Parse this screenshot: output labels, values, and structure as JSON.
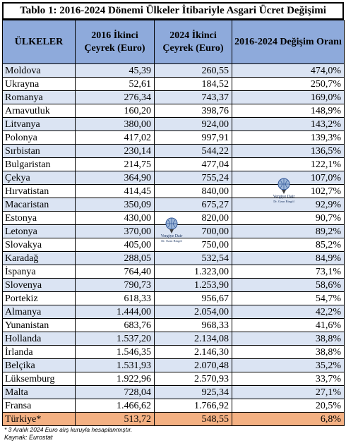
{
  "title": "Tablo 1: 2016-2024 Dönemi Ülkeler İtibariyle Asgari Ücret Değişimi",
  "headers": {
    "country": "ÜLKELER",
    "q2016": "2016 İkinci Çeyrek (Euro)",
    "q2024": "2024 İkinci Çeyrek (Euro)",
    "change": "2016-2024 Değişim Oranı"
  },
  "rows": [
    {
      "country": "Moldova",
      "v2016": "45,39",
      "v2024": "260,55",
      "change": "474,0%"
    },
    {
      "country": "Ukrayna",
      "v2016": "52,61",
      "v2024": "184,52",
      "change": "250,7%"
    },
    {
      "country": "Romanya",
      "v2016": "276,34",
      "v2024": "743,37",
      "change": "169,0%"
    },
    {
      "country": "Arnavutluk",
      "v2016": "160,20",
      "v2024": "398,76",
      "change": "148,9%"
    },
    {
      "country": "Litvanya",
      "v2016": "380,00",
      "v2024": "924,00",
      "change": "143,2%"
    },
    {
      "country": "Polonya",
      "v2016": "417,02",
      "v2024": "997,91",
      "change": "139,3%"
    },
    {
      "country": "Sırbistan",
      "v2016": "230,14",
      "v2024": "544,22",
      "change": "136,5%"
    },
    {
      "country": "Bulgaristan",
      "v2016": "214,75",
      "v2024": "477,04",
      "change": "122,1%"
    },
    {
      "country": "Çekya",
      "v2016": "364,90",
      "v2024": "755,24",
      "change": "107,0%"
    },
    {
      "country": "Hırvatistan",
      "v2016": "414,45",
      "v2024": "840,00",
      "change": "102,7%"
    },
    {
      "country": "Macaristan",
      "v2016": "350,09",
      "v2024": "675,27",
      "change": "92,9%"
    },
    {
      "country": "Estonya",
      "v2016": "430,00",
      "v2024": "820,00",
      "change": "90,7%"
    },
    {
      "country": "Letonya",
      "v2016": "370,00",
      "v2024": "700,00",
      "change": "89,2%"
    },
    {
      "country": "Slovakya",
      "v2016": "405,00",
      "v2024": "750,00",
      "change": "85,2%"
    },
    {
      "country": "Karadağ",
      "v2016": "288,05",
      "v2024": "532,54",
      "change": "84,9%"
    },
    {
      "country": "İspanya",
      "v2016": "764,40",
      "v2024": "1.323,00",
      "change": "73,1%"
    },
    {
      "country": "Slovenya",
      "v2016": "790,73",
      "v2024": "1.253,90",
      "change": "58,6%"
    },
    {
      "country": "Portekiz",
      "v2016": "618,33",
      "v2024": "956,67",
      "change": "54,7%"
    },
    {
      "country": "Almanya",
      "v2016": "1.444,00",
      "v2024": "2.054,00",
      "change": "42,2%"
    },
    {
      "country": "Yunanistan",
      "v2016": "683,76",
      "v2024": "968,33",
      "change": "41,6%"
    },
    {
      "country": "Hollanda",
      "v2016": "1.537,20",
      "v2024": "2.134,08",
      "change": "38,8%"
    },
    {
      "country": "İrlanda",
      "v2016": "1.546,35",
      "v2024": "2.146,30",
      "change": "38,8%"
    },
    {
      "country": "Belçika",
      "v2016": "1.531,93",
      "v2024": "2.070,48",
      "change": "35,2%"
    },
    {
      "country": "Lüksemburg",
      "v2016": "1.922,96",
      "v2024": "2.570,93",
      "change": "33,7%"
    },
    {
      "country": "Malta",
      "v2016": "728,04",
      "v2024": "925,34",
      "change": "27,1%"
    },
    {
      "country": "Fransa",
      "v2016": "1.466,62",
      "v2024": "1.766,92",
      "change": "20,5%"
    },
    {
      "country": "Türkiye*",
      "v2016": "513,72",
      "v2024": "548,55",
      "change": "6,8%"
    }
  ],
  "footnote": "* 3 Aralık 2024 Euro alış kuruyla hesaplanmıştır.",
  "source": "Kaynak: Eurostat",
  "watermark": {
    "line1": "Vergiye Dair",
    "line2": "Dr. Ozan Bingöl"
  },
  "colors": {
    "header": "#8eaadb",
    "stripe": "#dbe4f3",
    "highlight": "#f4b183"
  }
}
